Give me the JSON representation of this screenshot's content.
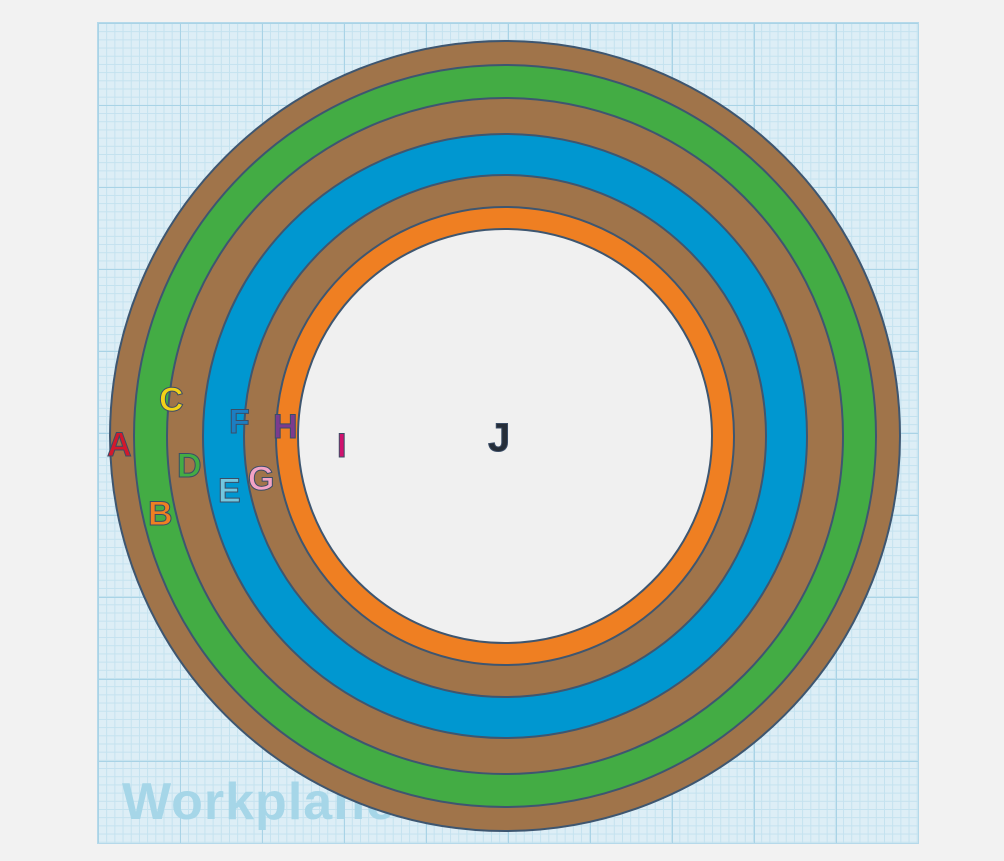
{
  "workplane": {
    "label": "Workplane"
  },
  "ring_colors": {
    "brown": "#a0744a",
    "green": "#43ac44",
    "blue": "#0097d0",
    "orange": "#ef7f22",
    "center": "#f0f0f0",
    "outline": "#3e5670"
  },
  "labels": [
    {
      "id": "A",
      "text": "A",
      "color": "#d3182c"
    },
    {
      "id": "B",
      "text": "B",
      "color": "#ef7f22"
    },
    {
      "id": "C",
      "text": "C",
      "color": "#f2d217"
    },
    {
      "id": "D",
      "text": "D",
      "color": "#43ac44"
    },
    {
      "id": "E",
      "text": "E",
      "color": "#73c7df"
    },
    {
      "id": "F",
      "text": "F",
      "color": "#1c7ec2"
    },
    {
      "id": "G",
      "text": "G",
      "color": "#f2a3c6"
    },
    {
      "id": "H",
      "text": "H",
      "color": "#7b3b8e"
    },
    {
      "id": "I",
      "text": "I",
      "color": "#d0126e"
    },
    {
      "id": "J",
      "text": "J",
      "color": "#252d38"
    }
  ]
}
